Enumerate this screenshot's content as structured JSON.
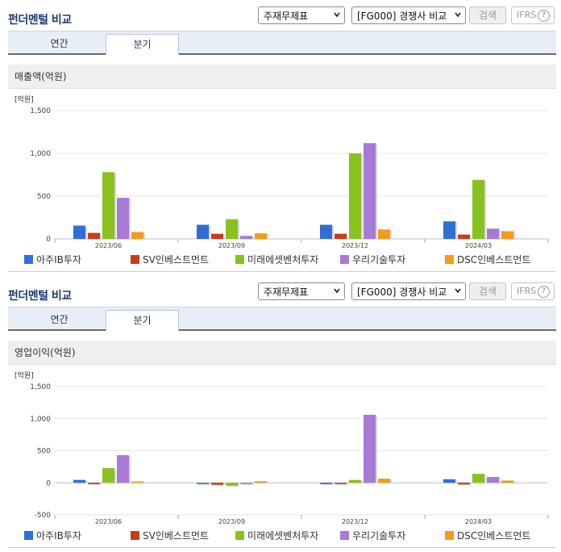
{
  "title": "펀더멘털 비교",
  "controls": {
    "statement_select": "주재무제표",
    "peer_select": "[FG000] 경쟁사 비교",
    "search_label": "검색",
    "ifrs_label": "IFRS",
    "ifrs_help": "?"
  },
  "tabs": [
    "연간",
    "분기"
  ],
  "active_tab": 1,
  "legend": [
    {
      "name": "아주IB투자",
      "color": "#2f6fd6"
    },
    {
      "name": "SV인베스트먼트",
      "color": "#cc3a17"
    },
    {
      "name": "미래에셋벤처투자",
      "color": "#8ac11f"
    },
    {
      "name": "우리기술투자",
      "color": "#a77ad6"
    },
    {
      "name": "DSC인베스트먼트",
      "color": "#f39b1b"
    }
  ],
  "panels": [
    {
      "title": "펀더멘털 비교",
      "chart_title": "매출액(억원)",
      "chart_data": {
        "type": "bar",
        "unit": "[억원]",
        "categories": [
          "2023/06",
          "2023/09",
          "2023/12",
          "2024/03"
        ],
        "ylim": [
          0,
          1500
        ],
        "yticks": [
          0,
          500,
          1000,
          1500
        ],
        "ytick_labels": [
          "0",
          "500",
          "1,000",
          "1,500"
        ],
        "series": [
          {
            "name": "아주IB투자",
            "values": [
              155,
              165,
              165,
              205
            ]
          },
          {
            "name": "SV인베스트먼트",
            "values": [
              70,
              60,
              60,
              50
            ]
          },
          {
            "name": "미래에셋벤처투자",
            "values": [
              780,
              230,
              1000,
              690
            ]
          },
          {
            "name": "우리기술투자",
            "values": [
              480,
              35,
              1120,
              120
            ]
          },
          {
            "name": "DSC인베스트먼트",
            "values": [
              80,
              65,
              110,
              90
            ]
          }
        ]
      }
    },
    {
      "title": "펀더멘털 비교",
      "chart_title": "영업이익(억원)",
      "chart_data": {
        "type": "bar",
        "unit": "[억원]",
        "categories": [
          "2023/06",
          "2023/09",
          "2023/12",
          "2024/03"
        ],
        "ylim": [
          -500,
          1500
        ],
        "yticks": [
          -500,
          0,
          500,
          1000,
          1500
        ],
        "ytick_labels": [
          "-500",
          "0",
          "500",
          "1,000",
          "1,500"
        ],
        "series": [
          {
            "name": "아주IB투자",
            "values": [
              45,
              -5,
              -20,
              55
            ]
          },
          {
            "name": "SV인베스트먼트",
            "values": [
              -20,
              -30,
              -5,
              -25
            ]
          },
          {
            "name": "미래에셋벤처투자",
            "values": [
              230,
              -45,
              45,
              140
            ]
          },
          {
            "name": "우리기술투자",
            "values": [
              430,
              -5,
              1060,
              90
            ]
          },
          {
            "name": "DSC인베스트먼트",
            "values": [
              20,
              25,
              65,
              35
            ]
          }
        ]
      }
    }
  ]
}
